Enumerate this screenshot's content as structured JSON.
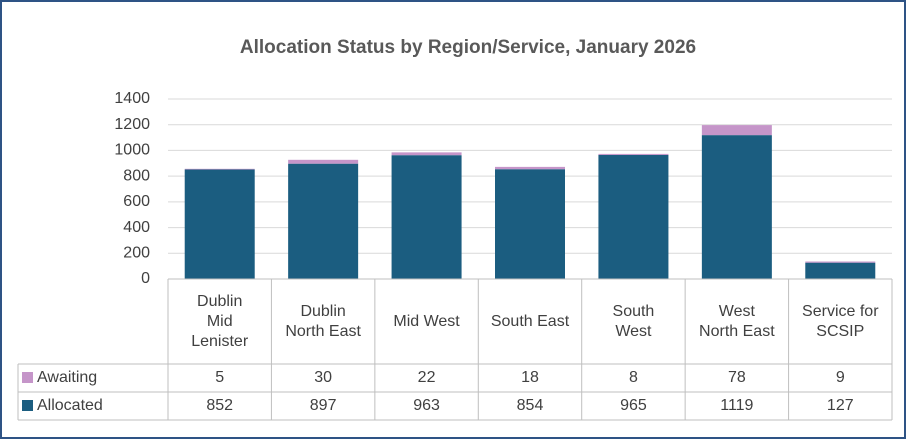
{
  "chart_data": {
    "type": "stacked-bar",
    "title": "Allocation Status by Region/Service, January 2026",
    "categories": [
      "Dublin Mid Lenister",
      "Dublin North East",
      "Mid West",
      "South East",
      "South West",
      "West North East",
      "Service for SCSIP"
    ],
    "series": [
      {
        "name": "Awaiting",
        "color": "#c595c9",
        "values": [
          5,
          30,
          22,
          18,
          8,
          78,
          9
        ]
      },
      {
        "name": "Allocated",
        "color": "#1b5d80",
        "values": [
          852,
          897,
          963,
          854,
          965,
          1119,
          127
        ]
      }
    ],
    "ylim": [
      0,
      1400
    ],
    "yticks": [
      0,
      200,
      400,
      600,
      800,
      1000,
      1200,
      1400
    ],
    "grid": true
  }
}
